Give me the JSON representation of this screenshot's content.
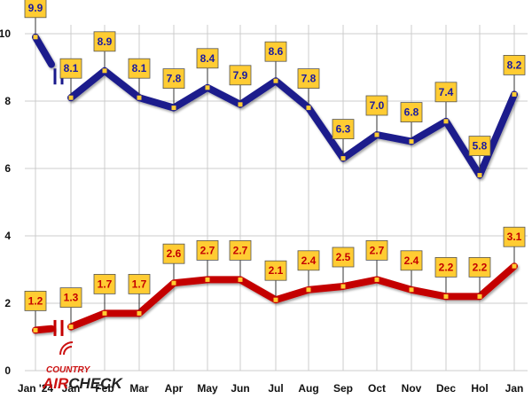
{
  "chart_data": {
    "type": "line",
    "title": "",
    "xlabel": "",
    "ylabel": "",
    "ylim": [
      0,
      10
    ],
    "yticks": [
      0,
      2,
      4,
      6,
      8,
      10
    ],
    "grid": true,
    "categories": [
      "Jan '24",
      "Jan",
      "Feb",
      "Mar",
      "Apr",
      "May",
      "Jun",
      "Jul",
      "Aug",
      "Sep",
      "Oct",
      "Nov",
      "Dec",
      "Hol",
      "Jan"
    ],
    "series": [
      {
        "name": "upper series",
        "color": "#1a1a8c",
        "values": [
          9.9,
          8.1,
          8.9,
          8.1,
          7.8,
          8.4,
          7.9,
          8.6,
          7.8,
          6.3,
          7.0,
          6.8,
          7.4,
          5.8,
          8.2
        ],
        "labels": [
          "9.9",
          "8.1",
          "8.9",
          "8.1",
          "7.8",
          "8.4",
          "7.9",
          "8.6",
          "7.8",
          "6.3",
          "7.0",
          "6.8",
          "7.4",
          "5.8",
          "8.2"
        ],
        "label_color": "#1a1aa0"
      },
      {
        "name": "lower series",
        "color": "#c40000",
        "values": [
          1.2,
          1.3,
          1.7,
          1.7,
          2.6,
          2.7,
          2.7,
          2.1,
          2.4,
          2.5,
          2.7,
          2.4,
          2.2,
          2.2,
          3.1
        ],
        "labels": [
          "1.2",
          "1.3",
          "1.7",
          "1.7",
          "2.6",
          "2.7",
          "2.7",
          "2.1",
          "2.4",
          "2.5",
          "2.7",
          "2.4",
          "2.2",
          "2.2",
          "3.1"
        ],
        "label_color": "#c40000"
      }
    ],
    "break_after_index": 0
  },
  "logo": {
    "line1": "COUNTRY",
    "line2a": "AIR",
    "line2b": "CHECK"
  },
  "colors": {
    "label_box": "#ffcc33",
    "grid": "#cccccc",
    "logo_red": "#cc1111",
    "logo_dark": "#222222"
  }
}
